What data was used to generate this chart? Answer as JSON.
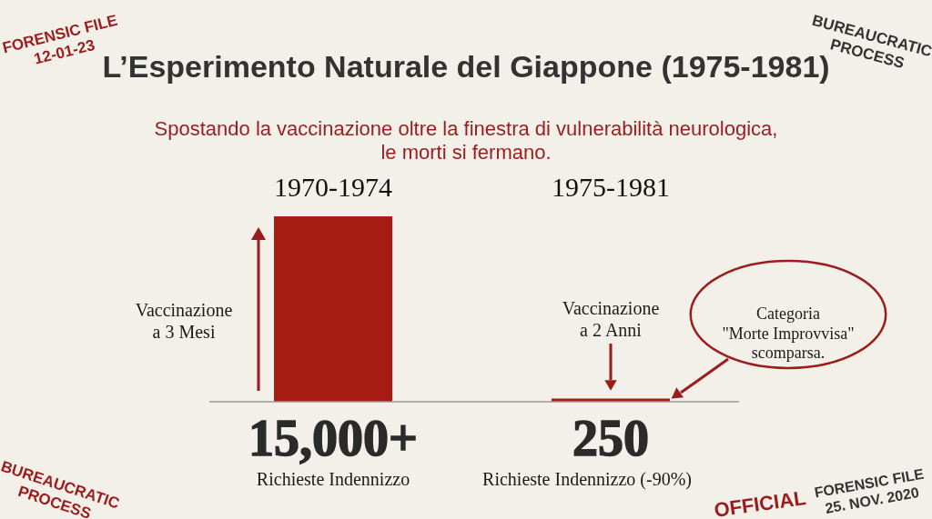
{
  "chart_data": {
    "type": "bar",
    "title": "L’Esperimento Naturale del Giappone (1975-1981)",
    "subtitle": "Spostando la vaccinazione oltre la finestra di vulnerabilità neurologica,\nle morti si fermano.",
    "categories": [
      "1970-1974",
      "1975-1981"
    ],
    "values": [
      15000,
      250
    ],
    "color": "#a61b12",
    "value_labels": [
      "15,000+",
      "250"
    ],
    "annotations": [
      "Richieste Indennizzo",
      "Richieste Indennizzo (-90%)",
      "Vaccinazione\na 3 Mesi",
      "Vaccinazione\na 2 Anni",
      "Categoria\n\"Morte Improvvisa\"\nscomparsa.",
      "FORENSIC FILE\n12-01-23",
      "BUREAUCRATIC\nPROCESS",
      "BUREAUCRATIC\nPROCESS",
      "FORENSIC FILE\n25. NOV. 2020",
      "OFFICIAL"
    ]
  }
}
